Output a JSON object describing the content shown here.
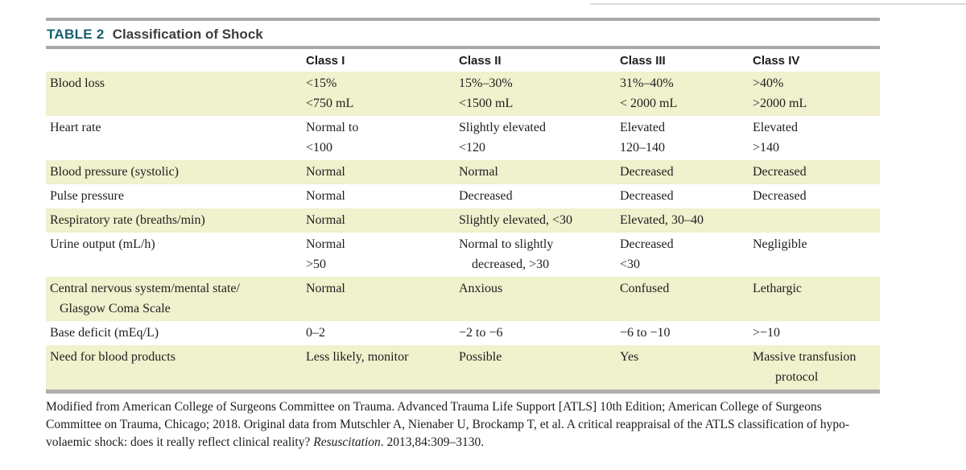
{
  "title": {
    "label": "TABLE 2",
    "text": "Classification of Shock"
  },
  "table": {
    "columns": [
      "",
      "Class I",
      "Class II",
      "Class III",
      "Class IV"
    ],
    "rows": [
      {
        "label": "Blood loss",
        "cells": [
          "<15%\n<750 mL",
          "15%–30%\n<1500 mL",
          "31%–40%\n< 2000 mL",
          ">40%\n>2000 mL"
        ]
      },
      {
        "label": "Heart rate",
        "cells": [
          "Normal to\n<100",
          "Slightly elevated\n<120",
          "Elevated\n120–140",
          "Elevated\n>140"
        ]
      },
      {
        "label": "Blood pressure (systolic)",
        "cells": [
          "Normal",
          "Normal",
          "Decreased",
          "Decreased"
        ]
      },
      {
        "label": "Pulse pressure",
        "cells": [
          "Normal",
          "Decreased",
          "Decreased",
          "Decreased"
        ]
      },
      {
        "label": "Respiratory rate (breaths/min)",
        "cells": [
          "Normal",
          "Slightly elevated, <30",
          "Elevated, 30–40",
          ""
        ]
      },
      {
        "label": "Urine output (mL/h)",
        "cells": [
          "Normal\n>50",
          "Normal to slightly\n    decreased, >30",
          "Decreased\n<30",
          "Negligible"
        ]
      },
      {
        "label": "Central nervous system/mental state/\n   Glasgow Coma Scale",
        "cells": [
          "Normal",
          "Anxious",
          "Confused",
          "Lethargic"
        ]
      },
      {
        "label": "Base deficit (mEq/L)",
        "cells": [
          "0–2",
          "−2 to −6",
          "−6 to −10",
          ">−10"
        ]
      },
      {
        "label": "Need for blood products",
        "cells": [
          "Less likely, monitor",
          "Possible",
          "Yes",
          "Massive transfusion\n       protocol"
        ]
      }
    ]
  },
  "footnote": {
    "line1": "Modified from American College of Surgeons Committee on Trauma. Advanced Trauma Life Support [ATLS] 10th Edition; American College of Surgeons",
    "line2": "Committee on Trauma, Chicago; 2018. Original data from Mutschler A, Nienaber U, Brockamp T, et al. A critical reappraisal of the ATLS classification of hypo-",
    "line3_pre": "volaemic shock: does it really reflect clinical reality? ",
    "line3_italic": "Resuscitation",
    "line3_post": ". 2013,84:309–3130."
  },
  "colors": {
    "accent_teal": "#16616e",
    "row_stripe": "#f0f1cd",
    "rule_gray": "#a9a9a9",
    "title_dark": "#3d3d3d"
  }
}
